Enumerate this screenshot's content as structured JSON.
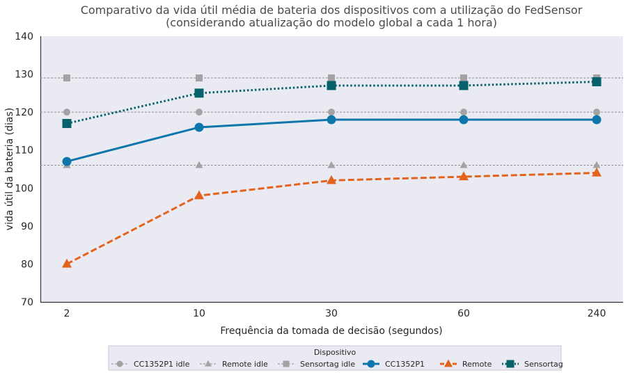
{
  "chart_data": {
    "type": "line",
    "title": "Comparativo da vida útil média de bateria dos dispositivos com a utilização do FedSensor",
    "subtitle": "(considerando atualização do modelo global a cada 1 hora)",
    "xlabel": "Frequência da tomada de decisão (segundos)",
    "ylabel": "vida útil da bateria (dias)",
    "categories": [
      "2",
      "10",
      "30",
      "60",
      "240"
    ],
    "ylim": [
      70,
      140
    ],
    "yticks": [
      70,
      80,
      90,
      100,
      110,
      120,
      130,
      140
    ],
    "grid": false,
    "legend_title": "Dispositivo",
    "legend_position": "bottom-center",
    "series": [
      {
        "name": "CC1352P1 idle",
        "values": [
          120,
          120,
          120,
          120,
          120
        ],
        "color": "#a3a3a3",
        "marker": "circle",
        "style": "idle"
      },
      {
        "name": "Remote idle",
        "values": [
          106,
          106,
          106,
          106,
          106
        ],
        "color": "#a3a3a3",
        "marker": "triangle",
        "style": "idle"
      },
      {
        "name": "Sensortag idle",
        "values": [
          129,
          129,
          129,
          129,
          129
        ],
        "color": "#a3a3a3",
        "marker": "square",
        "style": "idle"
      },
      {
        "name": "CC1352P1",
        "values": [
          107,
          116,
          118,
          118,
          118
        ],
        "color": "#0f76ac",
        "marker": "circle",
        "style": "solid"
      },
      {
        "name": "Remote",
        "values": [
          80,
          98,
          102,
          103,
          104
        ],
        "color": "#e4631c",
        "marker": "triangle",
        "style": "dashed"
      },
      {
        "name": "Sensortag",
        "values": [
          117,
          125,
          127,
          127,
          128
        ],
        "color": "#06616a",
        "marker": "square",
        "style": "dotted"
      }
    ]
  }
}
